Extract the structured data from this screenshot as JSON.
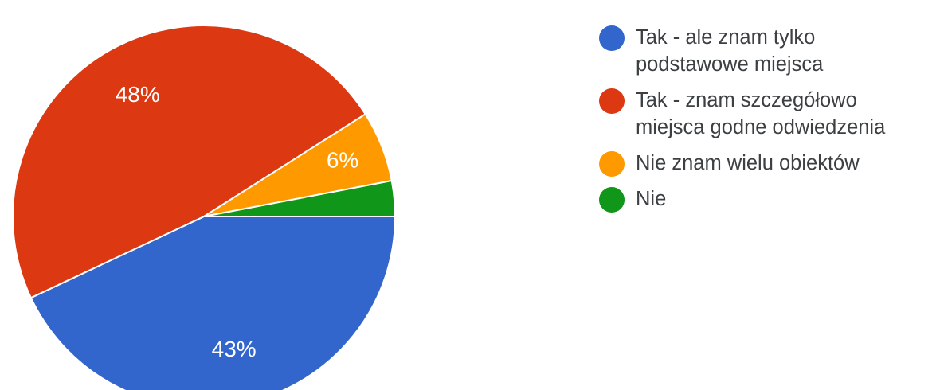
{
  "chart_data": {
    "type": "pie",
    "slices": [
      {
        "label": "Tak - ale znam tylko podstawowe miejsca",
        "value": 43,
        "display": "43%",
        "color": "#3366cc"
      },
      {
        "label": "Tak - znam szczegółowo miejsca godne odwiedzenia",
        "value": 48,
        "display": "48%",
        "color": "#dc3912"
      },
      {
        "label": "Nie znam wielu obiektów",
        "value": 6,
        "display": "6%",
        "color": "#ff9900"
      },
      {
        "label": "Nie",
        "value": 3,
        "display": "",
        "color": "#109618"
      }
    ],
    "legend_position": "right"
  },
  "legend": {
    "items": [
      {
        "text": "Tak - ale znam tylko\npodstawowe miejsca",
        "color": "#3366cc"
      },
      {
        "text": "Tak - znam szczegółowo\nmiejsca godne odwiedzenia",
        "color": "#dc3912"
      },
      {
        "text": "Nie znam wielu obiektów",
        "color": "#ff9900"
      },
      {
        "text": "Nie",
        "color": "#109618"
      }
    ]
  }
}
